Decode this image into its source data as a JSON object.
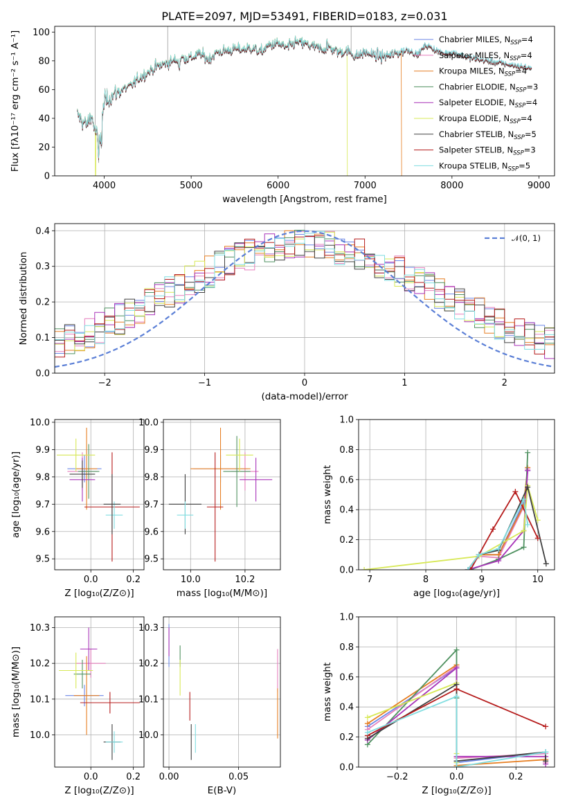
{
  "figure": {
    "title": "PLATE=2097, MJD=53491, FIBERID=0183, z=0.031"
  },
  "series": [
    {
      "name": "Chabrier MILES, N_SSP=4",
      "lib": "Chabrier MILES, N",
      "n": "=4",
      "color": "#6b86e6"
    },
    {
      "name": "Salpeter MILES, N_SSP=4",
      "lib": "Salpeter MILES, N",
      "n": "=4",
      "color": "#e57fbd"
    },
    {
      "name": "Kroupa MILES, N_SSP=4",
      "lib": "Kroupa MILES, N",
      "n": "=4",
      "color": "#e67e22"
    },
    {
      "name": "Chabrier ELODIE, N_SSP=3",
      "lib": "Chabrier ELODIE, N",
      "n": "=3",
      "color": "#4f9160"
    },
    {
      "name": "Salpeter ELODIE, N_SSP=4",
      "lib": "Salpeter ELODIE, N",
      "n": "=4",
      "color": "#a832b8"
    },
    {
      "name": "Kroupa ELODIE, N_SSP=4",
      "lib": "Kroupa ELODIE, N",
      "n": "=4",
      "color": "#d7e855"
    },
    {
      "name": "Chabrier STELIB, N_SSP=5",
      "lib": "Chabrier STELIB, N",
      "n": "=5",
      "color": "#3f3f3f"
    },
    {
      "name": "Salpeter STELIB, N_SSP=3",
      "lib": "Salpeter STELIB, N",
      "n": "=3",
      "color": "#b51a1a"
    },
    {
      "name": "Kroupa STELIB, N_SSP=5",
      "lib": "Kroupa STELIB, N",
      "n": "=5",
      "color": "#7fdde0"
    }
  ],
  "legend_sub": "SSP",
  "chart_data": [
    {
      "id": "spectrum",
      "type": "line",
      "xlabel": "wavelength [Angstrom, rest frame]",
      "ylabel": "Flux [fλ10⁻¹⁷ erg cm⁻² s⁻¹ A⁻¹]",
      "xlim": [
        3430,
        9180
      ],
      "ylim": [
        0,
        104
      ],
      "xticks": [
        4000,
        5000,
        6000,
        7000,
        8000,
        9000
      ],
      "yticks": [
        0,
        20,
        40,
        60,
        80,
        100
      ],
      "legend": "top-right",
      "data_wavelength": [
        3700,
        3750,
        3800,
        3850,
        3900,
        3950,
        4000,
        4100,
        4200,
        4300,
        4400,
        4500,
        4600,
        4700,
        4800,
        4900,
        5000,
        5100,
        5200,
        5300,
        5400,
        5500,
        5600,
        5700,
        5800,
        5900,
        6000,
        6100,
        6200,
        6300,
        6400,
        6500,
        6600,
        6700,
        6800,
        6900,
        7000,
        7100,
        7200,
        7300,
        7400,
        7500,
        7600,
        7700,
        7800,
        7900,
        8000,
        8200,
        8400,
        8600,
        8800,
        8900
      ],
      "data_flux": [
        42,
        38,
        35,
        43,
        30,
        25,
        52,
        56,
        60,
        62,
        68,
        72,
        76,
        78,
        80,
        82,
        82,
        85,
        81,
        86,
        87,
        88,
        88,
        89,
        86,
        91,
        92,
        89,
        93,
        92,
        90,
        88,
        89,
        86,
        87,
        83,
        86,
        84,
        83,
        84,
        86,
        88,
        84,
        91,
        88,
        85,
        86,
        82,
        80,
        78,
        76,
        75
      ],
      "cutoffs": [
        {
          "series": 5,
          "at": 6800
        },
        {
          "series": 2,
          "at": 7420
        },
        {
          "series": 5,
          "at": 3900
        }
      ]
    },
    {
      "id": "residuals",
      "type": "histogram",
      "xlabel": "(data-model)/error",
      "ylabel": "Normed distribution",
      "xlim": [
        -2.5,
        2.5
      ],
      "ylim": [
        0,
        0.42
      ],
      "xticks": [
        -2,
        -1,
        0,
        1,
        2
      ],
      "yticks": [
        0.0,
        0.1,
        0.2,
        0.3,
        0.4
      ],
      "bin_width": 0.1,
      "reference": {
        "name": "𝒩(0, 1)",
        "mean": 0,
        "sigma": 1
      },
      "legend": "top-right"
    },
    {
      "id": "z_age",
      "type": "errorbar",
      "xlabel": "Z [log₁₀(Z/Z⊙)]",
      "ylabel": "age  [log₁₀(age/yr)]",
      "xlim": [
        -0.17,
        0.25
      ],
      "ylim": [
        9.46,
        10.01
      ],
      "xticks": [
        0.0,
        0.2
      ],
      "yticks": [
        9.5,
        9.6,
        9.7,
        9.8,
        9.9,
        10.0
      ],
      "points": [
        {
          "x": -0.03,
          "xerr": 0.08,
          "y": 9.83,
          "yerr": 0.05
        },
        {
          "x": -0.04,
          "xerr": 0.07,
          "y": 9.82,
          "yerr": 0.07
        },
        {
          "x": -0.02,
          "xerr": 0.05,
          "y": 9.83,
          "yerr": 0.15
        },
        {
          "x": -0.01,
          "xerr": 0.05,
          "y": 9.82,
          "yerr": 0.1
        },
        {
          "x": -0.04,
          "xerr": 0.06,
          "y": 9.79,
          "yerr": 0.08
        },
        {
          "x": -0.07,
          "xerr": 0.09,
          "y": 9.88,
          "yerr": 0.06
        },
        {
          "x": -0.04,
          "xerr": 0.06,
          "y": 9.81,
          "yerr": 0.05
        },
        {
          "x": 0.1,
          "xerr": 0.13,
          "y": 9.69,
          "yerr": 0.2
        },
        {
          "x": 0.11,
          "xerr": 0.04,
          "y": 9.66,
          "yerr": 0.05
        }
      ],
      "extra": {
        "series": 6,
        "x": 0.1,
        "xerr": 0.04,
        "y": 9.7,
        "yerr": 0.11
      }
    },
    {
      "id": "mass_age",
      "type": "errorbar",
      "xlabel": "mass [log₁₀(M/M⊙)]",
      "ylabel": "",
      "xlim": [
        9.9,
        10.33
      ],
      "ylim": [
        9.46,
        10.01
      ],
      "xticks": [
        10.0,
        10.2
      ],
      "yticks": [
        9.5,
        9.6,
        9.7,
        9.8,
        9.9,
        10.0
      ],
      "points": [
        {
          "x": 10.11,
          "xerr": 0.1,
          "y": 9.83,
          "yerr": 0.05
        },
        {
          "x": 10.2,
          "xerr": 0.05,
          "y": 9.82,
          "yerr": 0.07
        },
        {
          "x": 10.11,
          "xerr": 0.11,
          "y": 9.83,
          "yerr": 0.15
        },
        {
          "x": 10.17,
          "xerr": 0.05,
          "y": 9.82,
          "yerr": 0.13
        },
        {
          "x": 10.24,
          "xerr": 0.06,
          "y": 9.79,
          "yerr": 0.08
        },
        {
          "x": 10.18,
          "xerr": 0.05,
          "y": 9.88,
          "yerr": 0.06
        },
        {
          "x": 9.98,
          "xerr": 0.06,
          "y": 9.7,
          "yerr": 0.11
        },
        {
          "x": 10.09,
          "xerr": 0.03,
          "y": 9.69,
          "yerr": 0.2
        },
        {
          "x": 9.98,
          "xerr": 0.03,
          "y": 9.66,
          "yerr": 0.05
        }
      ]
    },
    {
      "id": "age_weight",
      "type": "line",
      "xlabel": "age  [log₁₀(age/yr)]",
      "ylabel": "mass weight",
      "xlim": [
        6.8,
        10.3
      ],
      "ylim": [
        0,
        1.0
      ],
      "xticks": [
        7,
        8,
        9,
        10
      ],
      "yticks": [
        0.0,
        0.2,
        0.4,
        0.6,
        0.8,
        1.0
      ],
      "lines": [
        {
          "x": [
            8.75,
            8.95,
            9.3,
            9.75,
            9.82
          ],
          "y": [
            0.0,
            0.1,
            0.1,
            0.45,
            0.66
          ]
        },
        {
          "x": [
            8.75,
            8.95,
            9.3,
            9.75,
            9.82
          ],
          "y": [
            0.0,
            0.09,
            0.08,
            0.42,
            0.67
          ]
        },
        {
          "x": [
            8.75,
            8.95,
            9.3,
            9.75,
            9.82
          ],
          "y": [
            0.0,
            0.1,
            0.1,
            0.43,
            0.68
          ]
        },
        {
          "x": [
            8.8,
            9.3,
            9.75,
            9.82
          ],
          "y": [
            0.0,
            0.07,
            0.15,
            0.78
          ]
        },
        {
          "x": [
            8.75,
            9.3,
            9.75,
            9.82
          ],
          "y": [
            0.0,
            0.06,
            0.26,
            0.66
          ]
        },
        {
          "x": [
            6.9,
            8.95,
            9.75,
            9.82,
            10.0
          ],
          "y": [
            0.0,
            0.09,
            0.26,
            0.56,
            0.33
          ]
        },
        {
          "x": [
            8.75,
            8.95,
            9.3,
            9.82,
            10.15
          ],
          "y": [
            0.0,
            0.1,
            0.13,
            0.55,
            0.04
          ]
        },
        {
          "x": [
            8.8,
            9.2,
            9.6,
            10.0
          ],
          "y": [
            0.0,
            0.27,
            0.52,
            0.21
          ]
        },
        {
          "x": [
            8.75,
            8.95,
            9.3,
            9.75,
            9.82
          ],
          "y": [
            0.0,
            0.1,
            0.14,
            0.47,
            0.3
          ]
        }
      ]
    },
    {
      "id": "z_mass",
      "type": "errorbar",
      "xlabel": "Z [log₁₀(Z/Z⊙)]",
      "ylabel": "mass [log₁₀(M/M⊙)]",
      "xlim": [
        -0.17,
        0.25
      ],
      "ylim": [
        9.91,
        10.33
      ],
      "xticks": [
        0.0,
        0.2
      ],
      "yticks": [
        10.0,
        10.1,
        10.2,
        10.3
      ],
      "points": [
        {
          "x": -0.03,
          "xerr": 0.09,
          "y": 10.11,
          "yerr": 0.03
        },
        {
          "x": 0.0,
          "xerr": 0.07,
          "y": 10.2,
          "yerr": 0.04
        },
        {
          "x": -0.02,
          "xerr": 0.06,
          "y": 10.11,
          "yerr": 0.11
        },
        {
          "x": -0.04,
          "xerr": 0.04,
          "y": 10.17,
          "yerr": 0.04
        },
        {
          "x": -0.01,
          "xerr": 0.04,
          "y": 10.24,
          "yerr": 0.06
        },
        {
          "x": -0.07,
          "xerr": 0.08,
          "y": 10.18,
          "yerr": 0.05
        },
        {
          "x": 0.1,
          "xerr": 0.04,
          "y": 9.98,
          "yerr": 0.05
        },
        {
          "x": 0.09,
          "xerr": 0.14,
          "y": 10.09,
          "yerr": 0.03
        },
        {
          "x": 0.11,
          "xerr": 0.04,
          "y": 9.98,
          "yerr": 0.03
        }
      ]
    },
    {
      "id": "ebv_mass",
      "type": "errorbar",
      "xlabel": "E(B-V)",
      "ylabel": "",
      "xlim": [
        -0.004,
        0.08
      ],
      "ylim": [
        9.91,
        10.33
      ],
      "xticks": [
        0.0,
        0.05
      ],
      "yticks": [
        10.0,
        10.1,
        10.2,
        10.3
      ],
      "points": [
        {
          "x": 0.0,
          "xerr": 0,
          "y": 10.25,
          "yerr": 0.06
        },
        {
          "x": 0.078,
          "xerr": 0,
          "y": 10.18,
          "yerr": 0.06
        },
        {
          "x": 0.078,
          "xerr": 0,
          "y": 10.06,
          "yerr": 0.07
        },
        {
          "x": 0.008,
          "xerr": 0,
          "y": 10.22,
          "yerr": 0.03
        },
        {
          "x": 0.0,
          "xerr": 0,
          "y": 10.26,
          "yerr": 0.04
        },
        {
          "x": 0.008,
          "xerr": 0,
          "y": 10.16,
          "yerr": 0.05
        },
        {
          "x": 0.016,
          "xerr": 0,
          "y": 9.98,
          "yerr": 0.05
        },
        {
          "x": 0.015,
          "xerr": 0,
          "y": 10.08,
          "yerr": 0.04
        },
        {
          "x": 0.019,
          "xerr": 0,
          "y": 9.99,
          "yerr": 0.04
        }
      ]
    },
    {
      "id": "z_weight",
      "type": "line",
      "xlabel": "Z [log₁₀(Z/Z⊙)]",
      "ylabel": "mass weight",
      "xlim": [
        -0.33,
        0.33
      ],
      "ylim": [
        0,
        1.0
      ],
      "xticks": [
        -0.2,
        0.0,
        0.2
      ],
      "yticks": [
        0.0,
        0.2,
        0.4,
        0.6,
        0.8,
        1.0
      ],
      "lines": [
        {
          "x": [
            -0.3,
            0.0,
            0.0,
            0.3,
            0.3
          ],
          "y": [
            0.27,
            0.66,
            0.03,
            0.1,
            0.05
          ]
        },
        {
          "x": [
            -0.3,
            0.0,
            0.0,
            0.3,
            0.3
          ],
          "y": [
            0.25,
            0.67,
            0.06,
            0.09,
            0.03
          ]
        },
        {
          "x": [
            -0.3,
            0.0,
            0.0,
            0.3
          ],
          "y": [
            0.29,
            0.68,
            0.01,
            0.05
          ]
        },
        {
          "x": [
            -0.3,
            0.0,
            0.0,
            0.0
          ],
          "y": [
            0.15,
            0.78,
            0.46,
            0.07
          ]
        },
        {
          "x": [
            -0.3,
            0.0,
            0.0,
            0.3,
            0.3
          ],
          "y": [
            0.18,
            0.66,
            0.07,
            0.07,
            0.02
          ]
        },
        {
          "x": [
            -0.3,
            0.0,
            0.0,
            0.0
          ],
          "y": [
            0.33,
            0.56,
            0.09,
            0.03
          ]
        },
        {
          "x": [
            -0.3,
            0.0,
            0.0,
            0.3,
            0.3
          ],
          "y": [
            0.19,
            0.55,
            0.04,
            0.1,
            0.04
          ]
        },
        {
          "x": [
            -0.3,
            0.0,
            0.3
          ],
          "y": [
            0.21,
            0.52,
            0.27
          ]
        },
        {
          "x": [
            -0.3,
            0.0,
            0.0,
            0.3,
            0.3
          ],
          "y": [
            0.23,
            0.47,
            0.0,
            0.1,
            0.1
          ]
        }
      ]
    }
  ]
}
